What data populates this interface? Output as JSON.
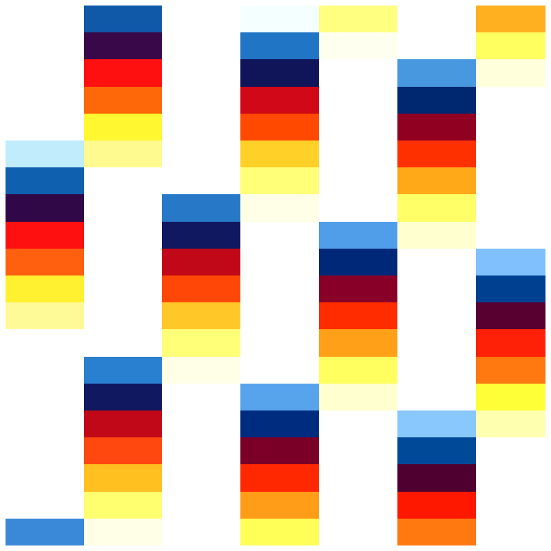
{
  "chart_data": {
    "type": "heatmap",
    "title": "",
    "xlabel": "",
    "ylabel": "",
    "axes_visible": false,
    "grid": false,
    "n_rows": 20,
    "n_cols": 7,
    "background": "#ffffff",
    "cell_colors_by_column": [
      [
        null,
        null,
        null,
        null,
        null,
        "#c0ecfc",
        "#1060b0",
        "#300848",
        "#ff1010",
        "#ff6010",
        "#fff030",
        "#fffa98",
        null,
        null,
        null,
        null,
        null,
        null,
        null,
        "#3a88d8"
      ],
      [
        "#1058a8",
        "#380848",
        "#ff1010",
        "#ff6808",
        "#fff830",
        "#fffa90",
        null,
        null,
        null,
        null,
        null,
        null,
        null,
        "#2a80d0",
        "#101860",
        "#c00818",
        "#ff4810",
        "#ffc020",
        "#ffff70",
        "#ffffe8"
      ],
      [
        null,
        null,
        null,
        null,
        null,
        null,
        null,
        "#2878c8",
        "#101860",
        "#c00818",
        "#ff4808",
        "#ffc828",
        "#ffff78",
        "#ffffe8",
        null,
        null,
        null,
        null,
        null,
        null
      ],
      [
        "#f4ffff",
        "#2075c5",
        "#101458",
        "#d00818",
        "#ff4800",
        "#ffd028",
        "#ffff78",
        "#ffffe8",
        null,
        null,
        null,
        null,
        null,
        null,
        "#58a4ec",
        "#002c80",
        "#7a0028",
        "#ff2800",
        "#ff9c18",
        "#ffff58"
      ],
      [
        "#ffff80",
        "#fffff0",
        null,
        null,
        null,
        null,
        null,
        null,
        "#509eea",
        "#002878",
        "#880028",
        "#ff2c00",
        "#ffa018",
        "#ffff60",
        "#ffffd0",
        null,
        null,
        null,
        null,
        null
      ],
      [
        null,
        null,
        "#4898e0",
        "#002870",
        "#900020",
        "#ff3000",
        "#ffa818",
        "#ffff68",
        "#ffffd0",
        null,
        null,
        null,
        null,
        null,
        null,
        "#88c8fc",
        "#004898",
        "#500030",
        "#ff1800",
        "#ff7810"
      ],
      [
        "#ffb020",
        "#ffff60",
        "#ffffdc",
        null,
        null,
        null,
        null,
        null,
        null,
        "#80c0fc",
        "#004090",
        "#580030",
        "#ff2008",
        "#ff7810",
        "#ffff38",
        "#ffffb0",
        null,
        null,
        null,
        null
      ]
    ]
  }
}
